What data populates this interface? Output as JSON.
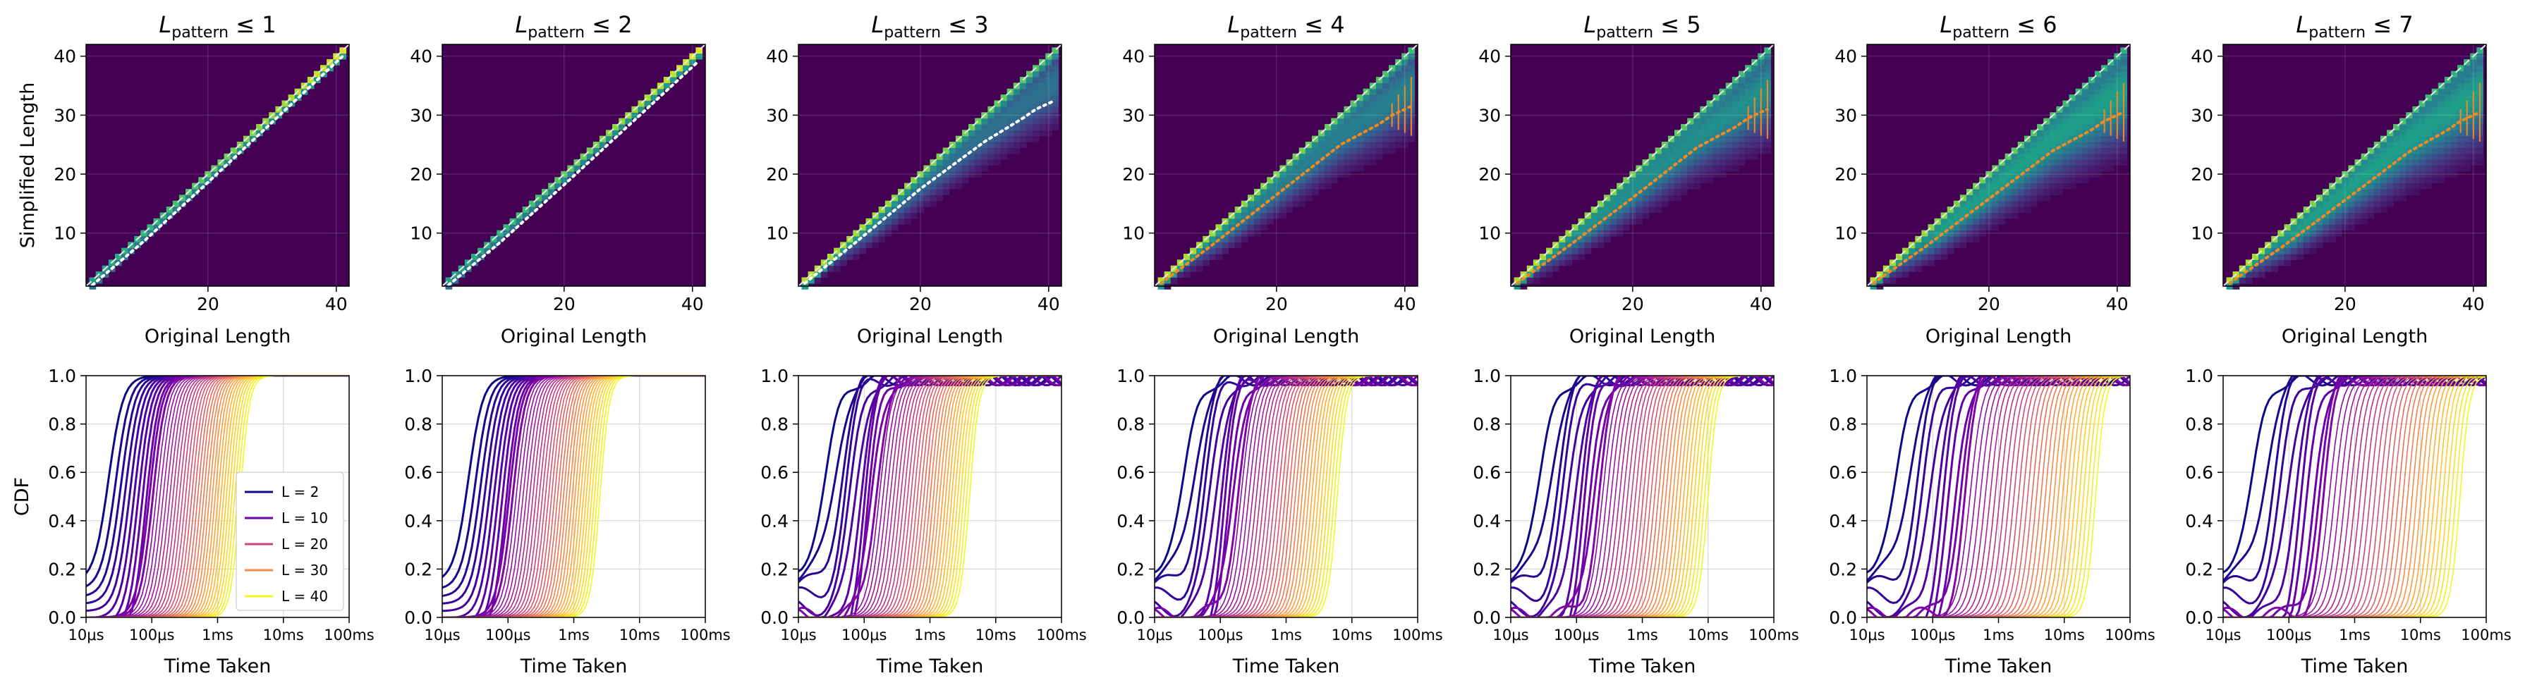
{
  "figure": {
    "panel_titles": [
      {
        "prefix": "L",
        "subscript": "pattern",
        "suffix": "≤ 1"
      },
      {
        "prefix": "L",
        "subscript": "pattern",
        "suffix": "≤ 2"
      },
      {
        "prefix": "L",
        "subscript": "pattern",
        "suffix": "≤ 3"
      },
      {
        "prefix": "L",
        "subscript": "pattern",
        "suffix": "≤ 4"
      },
      {
        "prefix": "L",
        "subscript": "pattern",
        "suffix": "≤ 5"
      },
      {
        "prefix": "L",
        "subscript": "pattern",
        "suffix": "≤ 6"
      },
      {
        "prefix": "L",
        "subscript": "pattern",
        "suffix": "≤ 7"
      }
    ],
    "heatmap_xlabel": "Original Length",
    "heatmap_ylabel": "Simplified Length",
    "cdf_xlabel": "Time Taken",
    "cdf_ylabel": "CDF",
    "colors": {
      "heatmap_low": "#440154",
      "heatmap_mid": "#21918c",
      "heatmap_high": "#fde725",
      "diagonal": "#e8e8e8",
      "trend_white": "#ffffff",
      "trend_orange": "#f08a24"
    }
  },
  "chart_data": [
    {
      "type": "heatmap",
      "panel": 1,
      "xlim": [
        1,
        42
      ],
      "ylim": [
        1,
        42
      ],
      "xticks": [
        20,
        40
      ],
      "yticks": [
        10,
        20,
        30,
        40
      ],
      "diagonal": true,
      "band_width": 0.0,
      "trend": {
        "color": "white",
        "points": [
          [
            2,
            1.2
          ],
          [
            10,
            8.6
          ],
          [
            20,
            18.6
          ],
          [
            30,
            28.8
          ],
          [
            40,
            39.0
          ],
          [
            41,
            40.0
          ]
        ]
      }
    },
    {
      "type": "heatmap",
      "panel": 2,
      "xlim": [
        1,
        42
      ],
      "ylim": [
        1,
        42
      ],
      "xticks": [
        20,
        40
      ],
      "yticks": [
        10,
        20,
        30,
        40
      ],
      "diagonal": true,
      "band_width": 0.0,
      "trend": {
        "color": "white",
        "points": [
          [
            2,
            1.2
          ],
          [
            10,
            8.4
          ],
          [
            20,
            18.2
          ],
          [
            30,
            28.2
          ],
          [
            40,
            38.2
          ],
          [
            41,
            39.2
          ]
        ]
      }
    },
    {
      "type": "heatmap",
      "panel": 3,
      "xlim": [
        1,
        42
      ],
      "ylim": [
        1,
        42
      ],
      "xticks": [
        20,
        40
      ],
      "yticks": [
        10,
        20,
        30,
        40
      ],
      "diagonal": true,
      "band_width": 0.3,
      "trend": {
        "color": "white",
        "points": [
          [
            2,
            1.5
          ],
          [
            10,
            8.5
          ],
          [
            20,
            17.5
          ],
          [
            30,
            25.5
          ],
          [
            36,
            29.5
          ],
          [
            38,
            31
          ],
          [
            40,
            32
          ],
          [
            41,
            32.5
          ]
        ]
      }
    },
    {
      "type": "heatmap",
      "panel": 4,
      "xlim": [
        1,
        42
      ],
      "ylim": [
        1,
        42
      ],
      "xticks": [
        20,
        40
      ],
      "yticks": [
        10,
        20,
        30,
        40
      ],
      "diagonal": true,
      "band_width": 0.35,
      "trend": {
        "color": "orange",
        "points": [
          [
            2,
            1.5
          ],
          [
            10,
            8.0
          ],
          [
            20,
            16.5
          ],
          [
            30,
            25.0
          ],
          [
            36,
            28.5
          ],
          [
            38,
            30
          ],
          [
            40,
            31
          ],
          [
            41,
            31.5
          ]
        ]
      }
    },
    {
      "type": "heatmap",
      "panel": 5,
      "xlim": [
        1,
        42
      ],
      "ylim": [
        1,
        42
      ],
      "xticks": [
        20,
        40
      ],
      "yticks": [
        10,
        20,
        30,
        40
      ],
      "diagonal": true,
      "band_width": 0.4,
      "trend": {
        "color": "orange",
        "points": [
          [
            2,
            1.5
          ],
          [
            10,
            7.8
          ],
          [
            20,
            16.0
          ],
          [
            30,
            24.5
          ],
          [
            36,
            28.0
          ],
          [
            38,
            29.5
          ],
          [
            40,
            30.5
          ],
          [
            41,
            31
          ]
        ]
      }
    },
    {
      "type": "heatmap",
      "panel": 6,
      "xlim": [
        1,
        42
      ],
      "ylim": [
        1,
        42
      ],
      "xticks": [
        20,
        40
      ],
      "yticks": [
        10,
        20,
        30,
        40
      ],
      "diagonal": true,
      "band_width": 0.45,
      "trend": {
        "color": "orange",
        "points": [
          [
            2,
            1.5
          ],
          [
            10,
            7.6
          ],
          [
            20,
            15.8
          ],
          [
            30,
            24.0
          ],
          [
            36,
            27.5
          ],
          [
            38,
            29
          ],
          [
            40,
            30
          ],
          [
            41,
            30.5
          ]
        ]
      }
    },
    {
      "type": "heatmap",
      "panel": 7,
      "xlim": [
        1,
        42
      ],
      "ylim": [
        1,
        42
      ],
      "xticks": [
        20,
        40
      ],
      "yticks": [
        10,
        20,
        30,
        40
      ],
      "diagonal": true,
      "band_width": 0.45,
      "trend": {
        "color": "orange",
        "points": [
          [
            2,
            1.5
          ],
          [
            10,
            7.5
          ],
          [
            20,
            15.6
          ],
          [
            30,
            23.8
          ],
          [
            36,
            27.5
          ],
          [
            38,
            29
          ],
          [
            40,
            30
          ],
          [
            41,
            30.5
          ]
        ]
      }
    },
    {
      "type": "line",
      "panel": 8,
      "x_scale": "log",
      "xlim_seconds": [
        1e-05,
        0.1
      ],
      "xtick_labels": [
        "10μs",
        "100μs",
        "1ms",
        "10ms",
        "100ms"
      ],
      "ylim": [
        0,
        1
      ],
      "yticks": [
        "0.0",
        "0.2",
        "0.4",
        "0.6",
        "0.8",
        "1.0"
      ],
      "grid": true,
      "series_L": [
        2,
        41
      ],
      "median_seconds_L2": 2.2e-05,
      "median_seconds_L41": 0.0022,
      "legend": {
        "placement": "lower right",
        "entries": [
          {
            "label": "L = 2",
            "color": "#0d0887"
          },
          {
            "label": "L = 10",
            "color": "#6a00a8"
          },
          {
            "label": "L = 20",
            "color": "#cb4678"
          },
          {
            "label": "L = 30",
            "color": "#f48849"
          },
          {
            "label": "L = 40",
            "color": "#f0f921"
          }
        ]
      }
    },
    {
      "type": "line",
      "panel": 9,
      "x_scale": "log",
      "xlim_seconds": [
        1e-05,
        0.1
      ],
      "xtick_labels": [
        "10μs",
        "100μs",
        "1ms",
        "10ms",
        "100ms"
      ],
      "ylim": [
        0,
        1
      ],
      "yticks": [
        "0.0",
        "0.2",
        "0.4",
        "0.6",
        "0.8",
        "1.0"
      ],
      "grid": true,
      "series_L": [
        2,
        41
      ],
      "median_seconds_L2": 2.5e-05,
      "median_seconds_L41": 0.0025
    },
    {
      "type": "line",
      "panel": 10,
      "x_scale": "log",
      "xlim_seconds": [
        1e-05,
        0.1
      ],
      "xtick_labels": [
        "10μs",
        "100μs",
        "1ms",
        "10ms",
        "100ms"
      ],
      "ylim": [
        0,
        1
      ],
      "yticks": [
        "0.0",
        "0.2",
        "0.4",
        "0.6",
        "0.8",
        "1.0"
      ],
      "grid": true,
      "series_L": [
        2,
        41
      ],
      "median_seconds_L2": 2.8e-05,
      "median_seconds_L41": 0.004
    },
    {
      "type": "line",
      "panel": 11,
      "x_scale": "log",
      "xlim_seconds": [
        1e-05,
        0.1
      ],
      "xtick_labels": [
        "10μs",
        "100μs",
        "1ms",
        "10ms",
        "100ms"
      ],
      "ylim": [
        0,
        1
      ],
      "yticks": [
        "0.0",
        "0.2",
        "0.4",
        "0.6",
        "0.8",
        "1.0"
      ],
      "grid": true,
      "series_L": [
        2,
        41
      ],
      "median_seconds_L2": 3e-05,
      "median_seconds_L41": 0.006
    },
    {
      "type": "line",
      "panel": 12,
      "x_scale": "log",
      "xlim_seconds": [
        1e-05,
        0.1
      ],
      "xtick_labels": [
        "10μs",
        "100μs",
        "1ms",
        "10ms",
        "100ms"
      ],
      "ylim": [
        0,
        1
      ],
      "yticks": [
        "0.0",
        "0.2",
        "0.4",
        "0.6",
        "0.8",
        "1.0"
      ],
      "grid": true,
      "series_L": [
        2,
        41
      ],
      "median_seconds_L2": 3e-05,
      "median_seconds_L41": 0.01
    },
    {
      "type": "line",
      "panel": 13,
      "x_scale": "log",
      "xlim_seconds": [
        1e-05,
        0.1
      ],
      "xtick_labels": [
        "10μs",
        "100μs",
        "1ms",
        "10ms",
        "100ms"
      ],
      "ylim": [
        0,
        1
      ],
      "yticks": [
        "0.0",
        "0.2",
        "0.4",
        "0.6",
        "0.8",
        "1.0"
      ],
      "grid": true,
      "series_L": [
        2,
        41
      ],
      "median_seconds_L2": 3e-05,
      "median_seconds_L41": 0.03
    },
    {
      "type": "line",
      "panel": 14,
      "x_scale": "log",
      "xlim_seconds": [
        1e-05,
        0.1
      ],
      "xtick_labels": [
        "10μs",
        "100μs",
        "1ms",
        "10ms",
        "100ms"
      ],
      "ylim": [
        0,
        1
      ],
      "yticks": [
        "0.0",
        "0.2",
        "0.4",
        "0.6",
        "0.8",
        "1.0"
      ],
      "grid": true,
      "series_L": [
        2,
        41
      ],
      "median_seconds_L2": 3e-05,
      "median_seconds_L41": 0.04
    }
  ]
}
